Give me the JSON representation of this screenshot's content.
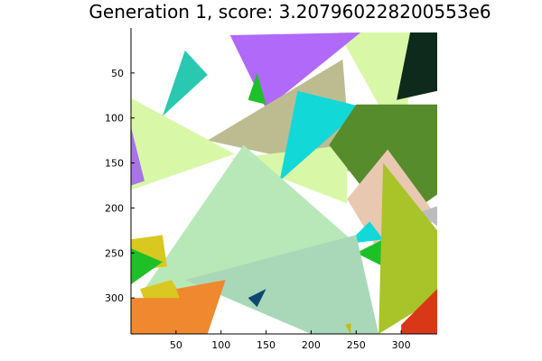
{
  "chart_data": {
    "type": "image-heatmap",
    "title": "Generation 1, score: 3.207960228200553e6",
    "xlim": [
      0,
      340
    ],
    "ylim": [
      0,
      340
    ],
    "y_inverted": true,
    "grid": false,
    "x_ticks": [
      50,
      100,
      150,
      200,
      250,
      300
    ],
    "y_ticks": [
      50,
      100,
      150,
      200,
      250,
      300
    ],
    "triangles": [
      {
        "color": "#d8f8a8",
        "points": [
          [
            230,
            5
          ],
          [
            320,
            5
          ],
          [
            300,
            130
          ]
        ]
      },
      {
        "color": "#0e2a1c",
        "points": [
          [
            310,
            5
          ],
          [
            340,
            5
          ],
          [
            340,
            70
          ],
          [
            295,
            80
          ]
        ]
      },
      {
        "color": "#b069f8",
        "points": [
          [
            110,
            8
          ],
          [
            255,
            5
          ],
          [
            150,
            90
          ]
        ]
      },
      {
        "color": "#2ac8b0",
        "points": [
          [
            35,
            98
          ],
          [
            60,
            25
          ],
          [
            85,
            52
          ]
        ]
      },
      {
        "color": "#1ec028",
        "points": [
          [
            130,
            80
          ],
          [
            140,
            50
          ],
          [
            150,
            85
          ]
        ]
      },
      {
        "color": "#bcbc90",
        "points": [
          [
            85,
            125
          ],
          [
            235,
            35
          ],
          [
            245,
            160
          ]
        ]
      },
      {
        "color": "#d8f8a8",
        "points": [
          [
            0,
            78
          ],
          [
            0,
            180
          ],
          [
            115,
            140
          ]
        ]
      },
      {
        "color": "#d8f8a8",
        "points": [
          [
            110,
            145
          ],
          [
            240,
            130
          ],
          [
            240,
            195
          ]
        ]
      },
      {
        "color": "#a874e8",
        "points": [
          [
            0,
            110
          ],
          [
            15,
            170
          ],
          [
            0,
            175
          ]
        ]
      },
      {
        "color": "#12d8d8",
        "points": [
          [
            165,
            170
          ],
          [
            185,
            70
          ],
          [
            258,
            88
          ]
        ]
      },
      {
        "color": "#568c2c",
        "points": [
          [
            220,
            130
          ],
          [
            250,
            85
          ],
          [
            340,
            85
          ],
          [
            340,
            185
          ],
          [
            290,
            220
          ]
        ]
      },
      {
        "color": "#e8c8b0",
        "points": [
          [
            240,
            190
          ],
          [
            285,
            135
          ],
          [
            340,
            210
          ],
          [
            285,
            265
          ]
        ]
      },
      {
        "color": "#bcbcc0",
        "points": [
          [
            320,
            205
          ],
          [
            340,
            198
          ],
          [
            340,
            220
          ]
        ]
      },
      {
        "color": "#a87ee8",
        "points": [
          [
            295,
            250
          ],
          [
            340,
            230
          ],
          [
            340,
            300
          ],
          [
            310,
            300
          ]
        ]
      },
      {
        "color": "#0e1860",
        "points": [
          [
            205,
            248
          ],
          [
            225,
            252
          ],
          [
            215,
            265
          ]
        ]
      },
      {
        "color": "#12d8d8",
        "points": [
          [
            240,
            240
          ],
          [
            265,
            215
          ],
          [
            280,
            235
          ]
        ]
      },
      {
        "color": "#1ec028",
        "points": [
          [
            250,
            250
          ],
          [
            280,
            235
          ],
          [
            280,
            265
          ]
        ]
      },
      {
        "color": "#b8e8b8",
        "points": [
          [
            15,
            290
          ],
          [
            125,
            130
          ],
          [
            250,
            240
          ],
          [
            90,
            300
          ]
        ]
      },
      {
        "color": "#a8d8b8",
        "points": [
          [
            60,
            280
          ],
          [
            250,
            230
          ],
          [
            275,
            340
          ],
          [
            200,
            340
          ]
        ]
      },
      {
        "color": "#d8c820",
        "points": [
          [
            0,
            235
          ],
          [
            35,
            230
          ],
          [
            40,
            265
          ],
          [
            0,
            270
          ]
        ]
      },
      {
        "color": "#1ec028",
        "points": [
          [
            0,
            245
          ],
          [
            35,
            260
          ],
          [
            0,
            285
          ]
        ]
      },
      {
        "color": "#d8c820",
        "points": [
          [
            10,
            290
          ],
          [
            45,
            280
          ],
          [
            75,
            330
          ],
          [
            30,
            340
          ]
        ]
      },
      {
        "color": "#f08830",
        "points": [
          [
            0,
            300
          ],
          [
            55,
            300
          ],
          [
            80,
            340
          ],
          [
            0,
            340
          ]
        ]
      },
      {
        "color": "#f08830",
        "points": [
          [
            50,
            290
          ],
          [
            105,
            280
          ],
          [
            85,
            340
          ],
          [
            70,
            340
          ]
        ]
      },
      {
        "color": "#0e4870",
        "points": [
          [
            130,
            300
          ],
          [
            150,
            290
          ],
          [
            140,
            310
          ]
        ]
      },
      {
        "color": "#a8c428",
        "points": [
          [
            280,
            150
          ],
          [
            340,
            225
          ],
          [
            340,
            300
          ],
          [
            275,
            340
          ]
        ]
      },
      {
        "color": "#d83818",
        "points": [
          [
            300,
            330
          ],
          [
            340,
            290
          ],
          [
            340,
            340
          ],
          [
            300,
            340
          ]
        ]
      },
      {
        "color": "#c8b810",
        "points": [
          [
            238,
            330
          ],
          [
            244,
            328
          ],
          [
            244,
            340
          ]
        ]
      }
    ]
  }
}
